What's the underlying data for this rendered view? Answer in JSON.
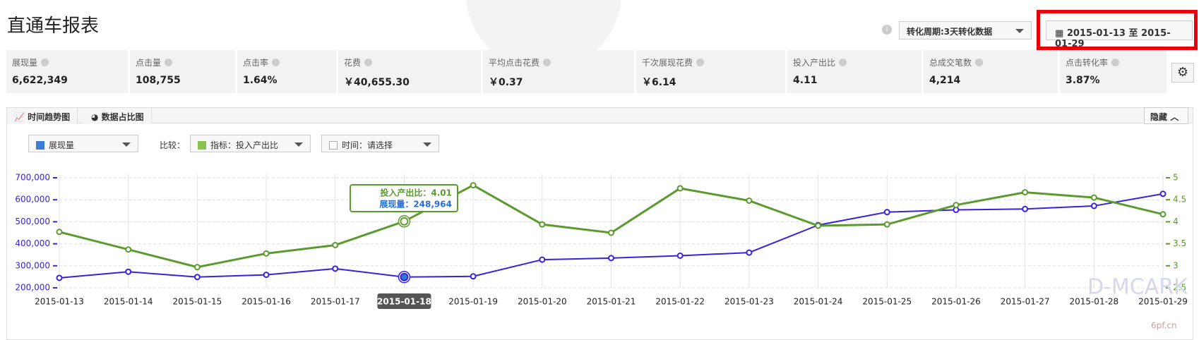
{
  "header": {
    "title": "直通车报表",
    "period": "转化周期:3天转化数据",
    "date_range": "2015-01-13 至 2015-01-29"
  },
  "metrics": [
    {
      "label": "展现量",
      "value": "6,622,349"
    },
    {
      "label": "点击量",
      "value": "108,755"
    },
    {
      "label": "点击率",
      "value": "1.64%"
    },
    {
      "label": "花费",
      "value": "￥40,655.30"
    },
    {
      "label": "平均点击花费",
      "value": "￥0.37"
    },
    {
      "label": "千次展现花费",
      "value": "￥6.14"
    },
    {
      "label": "投入产出比",
      "value": "4.11"
    },
    {
      "label": "总成交笔数",
      "value": "4,214"
    },
    {
      "label": "点击转化率",
      "value": "3.87%"
    }
  ],
  "tabs": [
    "时间趋势图",
    "数据占比图"
  ],
  "hide": "隐藏",
  "controls": {
    "compare": "比较：",
    "indicator": "指标：",
    "time": "时间：请选择"
  },
  "tooltip": {
    "lines": [
      "投入产出比：4.01",
      "展现量：248,964"
    ]
  },
  "watermark": [
    "D-MCARK",
    "6pf.cn"
  ],
  "chart_data": {
    "type": "line",
    "categories": [
      "2015-01-13",
      "2015-01-14",
      "2015-01-15",
      "2015-01-16",
      "2015-01-17",
      "2015-01-18",
      "2015-01-19",
      "2015-01-20",
      "2015-01-21",
      "2015-01-22",
      "2015-01-23",
      "2015-01-24",
      "2015-01-25",
      "2015-01-26",
      "2015-01-27",
      "2015-01-28",
      "2015-01-29"
    ],
    "series": [
      {
        "name": "展现量",
        "color": "#3a22dd",
        "values": [
          245000,
          273000,
          249000,
          259000,
          287000,
          248964,
          252000,
          328000,
          335000,
          346000,
          360000,
          485000,
          544000,
          554000,
          558000,
          572000,
          627000
        ]
      },
      {
        "name": "投入产出比",
        "color": "#5b9a2e",
        "axis": "y2",
        "values": [
          3.77,
          3.37,
          2.97,
          3.28,
          3.47,
          4.01,
          4.83,
          3.94,
          3.75,
          4.76,
          4.48,
          3.91,
          3.94,
          4.38,
          4.67,
          4.55,
          4.17
        ]
      }
    ],
    "ylim": [
      200000,
      700000
    ],
    "yticks": [
      {
        "value": 200000,
        "label": "200,000"
      },
      {
        "value": 300000,
        "label": "300,000"
      },
      {
        "value": 400000,
        "label": "400,000"
      },
      {
        "value": 500000,
        "label": "500,000"
      },
      {
        "value": 600000,
        "label": "600,000"
      },
      {
        "value": 700000,
        "label": "700,000"
      }
    ],
    "y2lim": [
      2.5,
      5
    ],
    "y2ticks": [
      2.5,
      3,
      3.5,
      4,
      4.5,
      5
    ],
    "grid": true
  }
}
